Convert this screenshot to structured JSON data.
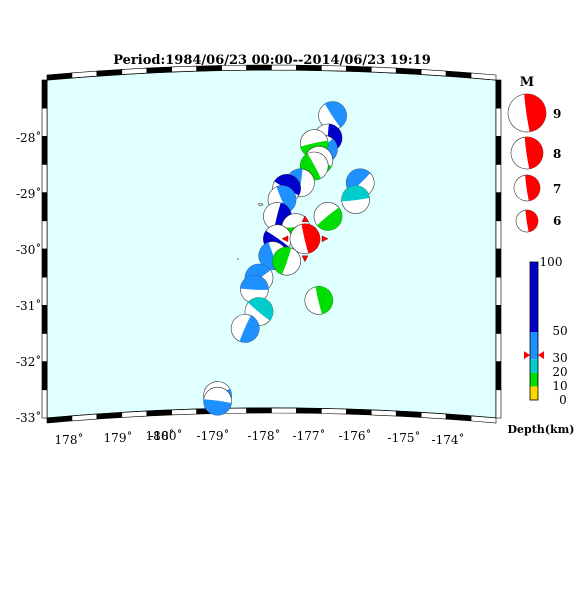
{
  "title": "Period:1984/06/23 00:00--2014/06/23 19:19",
  "colors": {
    "ocean": "#e0ffff",
    "frame": "#000000",
    "shallow": "#ffd700",
    "d10_20": "#00dd00",
    "d20_30": "#00cccc",
    "d30_50": "#1e90ff",
    "d50_100": "#0000cd",
    "selected": "#ff0000"
  },
  "map": {
    "lat_labels": [
      "-28˚",
      "-29˚",
      "-30˚",
      "-31˚",
      "-32˚",
      "-33˚"
    ],
    "lon_labels": [
      "178˚",
      "179˚",
      "180˚",
      "-180˚",
      "-179˚",
      "-178˚",
      "-177˚",
      "-176˚",
      "-175˚",
      "-174˚"
    ]
  },
  "legend": {
    "magnitude": {
      "title": "M",
      "items": [
        {
          "label": "9"
        },
        {
          "label": "8"
        },
        {
          "label": "7"
        },
        {
          "label": "6"
        }
      ]
    },
    "depth": {
      "ticks": [
        "100",
        "50",
        "30",
        "20",
        "10",
        "0"
      ],
      "unit": "Depth(km)",
      "bands": [
        {
          "from": 0,
          "to": 10,
          "color": "#ffd700"
        },
        {
          "from": 10,
          "to": 20,
          "color": "#00dd00"
        },
        {
          "from": 20,
          "to": 30,
          "color": "#00cccc"
        },
        {
          "from": 30,
          "to": 50,
          "color": "#1e90ff"
        },
        {
          "from": 50,
          "to": 100,
          "color": "#0000cd"
        }
      ],
      "marker_depth": 33
    }
  },
  "events": [
    {
      "lon": -176.4,
      "lat": -27.6,
      "color": "#1e90ff"
    },
    {
      "lon": -176.5,
      "lat": -28.0,
      "color": "#0000cd"
    },
    {
      "lon": -176.6,
      "lat": -28.2,
      "color": "#1e90ff"
    },
    {
      "lon": -176.8,
      "lat": -28.1,
      "color": "#00dd00"
    },
    {
      "lon": -176.7,
      "lat": -28.4,
      "color": "#00dd00"
    },
    {
      "lon": -176.8,
      "lat": -28.5,
      "color": "#00dd00"
    },
    {
      "lon": -177.1,
      "lat": -28.8,
      "color": "#1e90ff"
    },
    {
      "lon": -175.8,
      "lat": -28.8,
      "color": "#1e90ff"
    },
    {
      "lon": -175.9,
      "lat": -29.1,
      "color": "#00cccc"
    },
    {
      "lon": -177.4,
      "lat": -28.9,
      "color": "#0000cd"
    },
    {
      "lon": -177.5,
      "lat": -29.1,
      "color": "#1e90ff"
    },
    {
      "lon": -177.6,
      "lat": -29.4,
      "color": "#0000cd"
    },
    {
      "lon": -176.5,
      "lat": -29.4,
      "color": "#00dd00"
    },
    {
      "lon": -177.2,
      "lat": -29.6,
      "color": "#00dd00"
    },
    {
      "lon": -177.6,
      "lat": -29.8,
      "color": "#0000cd"
    },
    {
      "lon": -177.7,
      "lat": -30.1,
      "color": "#1e90ff"
    },
    {
      "lon": -177.4,
      "lat": -30.2,
      "color": "#00dd00"
    },
    {
      "lon": -178.0,
      "lat": -30.5,
      "color": "#1e90ff"
    },
    {
      "lon": -178.1,
      "lat": -30.7,
      "color": "#1e90ff"
    },
    {
      "lon": -178.0,
      "lat": -31.1,
      "color": "#00cccc"
    },
    {
      "lon": -176.7,
      "lat": -30.9,
      "color": "#00dd00"
    },
    {
      "lon": -178.3,
      "lat": -31.4,
      "color": "#1e90ff"
    },
    {
      "lon": -178.9,
      "lat": -32.6,
      "color": "#1e90ff"
    },
    {
      "lon": -178.9,
      "lat": -32.7,
      "color": "#1e90ff"
    }
  ],
  "selected_event": {
    "lon": -177.0,
    "lat": -29.8,
    "color": "#ff0000"
  }
}
